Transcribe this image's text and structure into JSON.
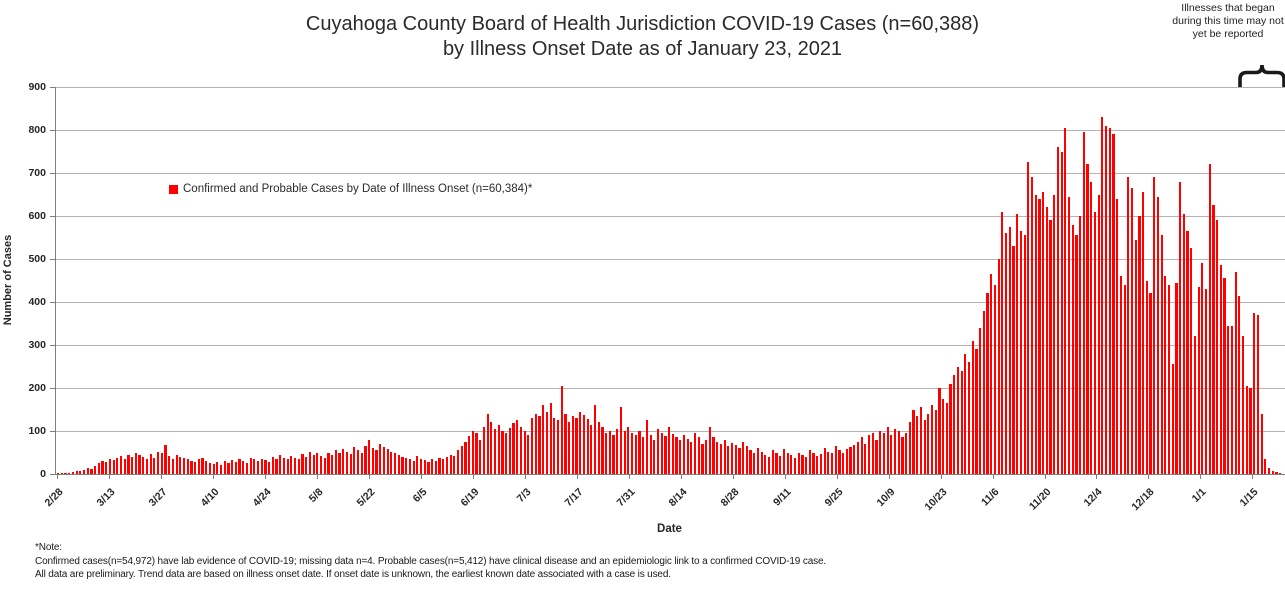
{
  "title": {
    "line1": "Cuyahoga County Board of Health Jurisdiction COVID-19 Cases (n=60,388)",
    "line2": "by Illness Onset Date as of January 23, 2021"
  },
  "lag_annotation": {
    "line1": "Illnesses that began",
    "line2": "during this time may not",
    "line3": "yet be reported",
    "brace_icon_color": "#1a1a1a"
  },
  "legend": {
    "label": "Confirmed and Probable Cases by Date of Illness Onset (n=60,384)*",
    "marker_color": "#ff0000"
  },
  "notes": {
    "line1": "*Note:",
    "line2": "Confirmed cases(n=54,972) have lab evidence of COVID-19; missing data n=4. Probable cases(n=5,412) have clinical disease and an epidemiologic link to a confirmed COVID-19 case.",
    "line3": "All data are preliminary. Trend data are based on illness onset date. If onset date is unknown, the earliest known date associated with a case is used."
  },
  "chart_data": {
    "type": "bar",
    "title": "Cuyahoga County Board of Health Jurisdiction COVID-19 Cases (n=60,388) by Illness Onset Date as of January 23, 2021",
    "series_name": "Confirmed and Probable Cases by Date of Illness Onset (n=60,384)*",
    "xlabel": "Date",
    "ylabel": "Number of Cases",
    "ylim": [
      0,
      900
    ],
    "y_ticks": [
      0,
      100,
      200,
      300,
      400,
      500,
      600,
      700,
      800,
      900
    ],
    "grid": true,
    "legend_position": "top-left-inside",
    "bar_color": "#ff0000",
    "gridline_color": "#b3b3b3",
    "start_date": "2/28/2020",
    "end_date": "1/23/2021",
    "x_tick_interval_days": 14,
    "x_tick_labels": [
      "2/28",
      "3/13",
      "3/27",
      "4/10",
      "4/24",
      "5/8",
      "5/22",
      "6/5",
      "6/19",
      "7/3",
      "7/17",
      "7/31",
      "8/14",
      "8/28",
      "9/11",
      "9/25",
      "10/9",
      "10/23",
      "11/6",
      "11/20",
      "12/4",
      "12/18",
      "1/1",
      "1/15"
    ],
    "values": [
      1,
      2,
      3,
      2,
      5,
      8,
      6,
      10,
      14,
      12,
      18,
      25,
      30,
      28,
      35,
      32,
      38,
      42,
      36,
      45,
      40,
      48,
      44,
      40,
      35,
      46,
      38,
      52,
      48,
      68,
      42,
      36,
      44,
      40,
      38,
      35,
      30,
      28,
      34,
      38,
      30,
      26,
      24,
      28,
      22,
      30,
      26,
      32,
      28,
      35,
      30,
      26,
      38,
      34,
      30,
      36,
      32,
      28,
      40,
      36,
      44,
      38,
      35,
      42,
      38,
      35,
      46,
      40,
      52,
      44,
      48,
      42,
      38,
      50,
      45,
      55,
      48,
      58,
      52,
      46,
      62,
      55,
      50,
      65,
      78,
      60,
      55,
      70,
      62,
      58,
      52,
      48,
      44,
      40,
      38,
      35,
      30,
      42,
      36,
      32,
      28,
      35,
      30,
      38,
      34,
      40,
      45,
      42,
      55,
      65,
      75,
      88,
      100,
      95,
      80,
      110,
      140,
      120,
      105,
      115,
      100,
      95,
      108,
      118,
      125,
      110,
      100,
      90,
      130,
      140,
      135,
      160,
      145,
      165,
      130,
      125,
      205,
      140,
      120,
      135,
      130,
      145,
      138,
      128,
      115,
      160,
      120,
      110,
      95,
      100,
      90,
      105,
      155,
      100,
      110,
      95,
      90,
      100,
      85,
      125,
      90,
      80,
      105,
      95,
      88,
      110,
      92,
      85,
      78,
      90,
      82,
      75,
      95,
      85,
      70,
      80,
      110,
      85,
      75,
      70,
      78,
      65,
      72,
      68,
      60,
      74,
      65,
      55,
      48,
      60,
      52,
      45,
      40,
      55,
      48,
      42,
      58,
      50,
      44,
      38,
      50,
      45,
      40,
      55,
      48,
      42,
      46,
      60,
      52,
      48,
      65,
      55,
      50,
      58,
      62,
      68,
      75,
      85,
      70,
      90,
      95,
      80,
      100,
      95,
      110,
      90,
      105,
      100,
      85,
      95,
      120,
      150,
      135,
      155,
      125,
      140,
      160,
      150,
      200,
      175,
      165,
      210,
      230,
      250,
      240,
      280,
      260,
      310,
      290,
      340,
      380,
      420,
      465,
      440,
      500,
      610,
      560,
      575,
      530,
      605,
      565,
      555,
      725,
      690,
      650,
      640,
      655,
      620,
      590,
      650,
      760,
      750,
      805,
      645,
      580,
      555,
      600,
      795,
      720,
      680,
      610,
      650,
      830,
      810,
      805,
      790,
      640,
      460,
      440,
      690,
      665,
      545,
      600,
      655,
      450,
      420,
      690,
      645,
      555,
      460,
      440,
      255,
      445,
      680,
      605,
      565,
      525,
      320,
      435,
      490,
      430,
      720,
      625,
      590,
      485,
      455,
      345,
      345,
      470,
      415,
      320,
      205,
      200,
      375,
      370,
      140,
      35,
      15,
      8,
      4,
      2
    ]
  }
}
